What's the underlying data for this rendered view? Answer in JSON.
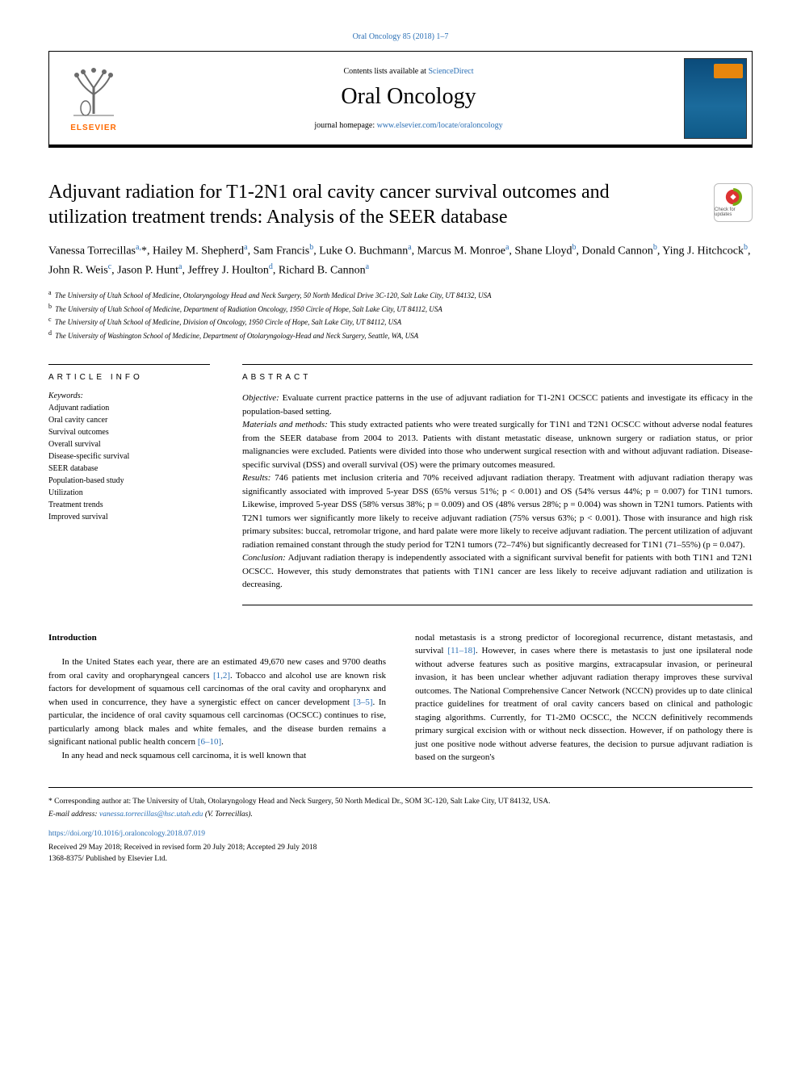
{
  "header": {
    "citation": "Oral Oncology 85 (2018) 1–7",
    "contents_prefix": "Contents lists available at ",
    "contents_link": "ScienceDirect",
    "journal_name": "Oral Oncology",
    "homepage_prefix": "journal homepage: ",
    "homepage_link": "www.elsevier.com/locate/oraloncology",
    "elsevier_label": "ELSEVIER"
  },
  "title": "Adjuvant radiation for T1-2N1 oral cavity cancer survival outcomes and utilization treatment trends: Analysis of the SEER database",
  "check_updates_label": "Check for updates",
  "authors_html": "Vanessa Torrecillas<sup>a,</sup>*, Hailey M. Shepherd<sup>a</sup>, Sam Francis<sup>b</sup>, Luke O. Buchmann<sup>a</sup>, Marcus M. Monroe<sup>a</sup>, Shane Lloyd<sup>b</sup>, Donald Cannon<sup>b</sup>, Ying J. Hitchcock<sup>b</sup>, John R. Weis<sup>c</sup>, Jason P. Hunt<sup>a</sup>, Jeffrey J. Houlton<sup>d</sup>, Richard B. Cannon<sup>a</sup>",
  "affiliations": [
    {
      "sup": "a",
      "text": "The University of Utah School of Medicine, Otolaryngology Head and Neck Surgery, 50 North Medical Drive 3C-120, Salt Lake City, UT 84132, USA"
    },
    {
      "sup": "b",
      "text": "The University of Utah School of Medicine, Department of Radiation Oncology, 1950 Circle of Hope, Salt Lake City, UT 84112, USA"
    },
    {
      "sup": "c",
      "text": "The University of Utah School of Medicine, Division of Oncology, 1950 Circle of Hope, Salt Lake City, UT 84112, USA"
    },
    {
      "sup": "d",
      "text": "The University of Washington School of Medicine, Department of Otolaryngology-Head and Neck Surgery, Seattle, WA, USA"
    }
  ],
  "article_info_heading": "ARTICLE INFO",
  "keywords_label": "Keywords:",
  "keywords": [
    "Adjuvant radiation",
    "Oral cavity cancer",
    "Survival outcomes",
    "Overall survival",
    "Disease-specific survival",
    "SEER database",
    "Population-based study",
    "Utilization",
    "Treatment trends",
    "Improved survival"
  ],
  "abstract_heading": "ABSTRACT",
  "abstract": {
    "objective_label": "Objective:",
    "objective": "Evaluate current practice patterns in the use of adjuvant radiation for T1-2N1 OCSCC patients and investigate its efficacy in the population-based setting.",
    "materials_label": "Materials and methods:",
    "materials": "This study extracted patients who were treated surgically for T1N1 and T2N1 OCSCC without adverse nodal features from the SEER database from 2004 to 2013. Patients with distant metastatic disease, unknown surgery or radiation status, or prior malignancies were excluded. Patients were divided into those who underwent surgical resection with and without adjuvant radiation. Disease-specific survival (DSS) and overall survival (OS) were the primary outcomes measured.",
    "results_label": "Results:",
    "results": "746 patients met inclusion criteria and 70% received adjuvant radiation therapy. Treatment with adjuvant radiation therapy was significantly associated with improved 5-year DSS (65% versus 51%; p < 0.001) and OS (54% versus 44%; p = 0.007) for T1N1 tumors. Likewise, improved 5-year DSS (58% versus 38%; p = 0.009) and OS (48% versus 28%; p = 0.004) was shown in T2N1 tumors. Patients with T2N1 tumors wer significantly more likely to receive adjuvant radiation (75% versus 63%; p < 0.001). Those with insurance and high risk primary subsites: buccal, retromolar trigone, and hard palate were more likely to receive adjuvant radiation. The percent utilization of adjuvant radiation remained constant through the study period for T2N1 tumors (72–74%) but significantly decreased for T1N1 (71–55%) (p = 0.047).",
    "conclusion_label": "Conclusion:",
    "conclusion": "Adjuvant radiation therapy is independently associated with a significant survival benefit for patients with both T1N1 and T2N1 OCSCC. However, this study demonstrates that patients with T1N1 cancer are less likely to receive adjuvant radiation and utilization is decreasing."
  },
  "intro_heading": "Introduction",
  "intro_col1": [
    "In the United States each year, there are an estimated 49,670 new cases and 9700 deaths from oral cavity and oropharyngeal cancers <span class=\"ref\">[1,2]</span>. Tobacco and alcohol use are known risk factors for development of squamous cell carcinomas of the oral cavity and oropharynx and when used in concurrence, they have a synergistic effect on cancer development <span class=\"ref\">[3–5]</span>. In particular, the incidence of oral cavity squamous cell carcinomas (OCSCC) continues to rise, particularly among black males and white females, and the disease burden remains a significant national public health concern <span class=\"ref\">[6–10]</span>.",
    "In any head and neck squamous cell carcinoma, it is well known that"
  ],
  "intro_col2": [
    "nodal metastasis is a strong predictor of locoregional recurrence, distant metastasis, and survival <span class=\"ref\">[11–18]</span>. However, in cases where there is metastasis to just one ipsilateral node without adverse features such as positive margins, extracapsular invasion, or perineural invasion, it has been unclear whether adjuvant radiation therapy improves these survival outcomes. The National Comprehensive Cancer Network (NCCN) provides up to date clinical practice guidelines for treatment of oral cavity cancers based on clinical and pathologic staging algorithms. Currently, for T1-2M0 OCSCC, the NCCN definitively recommends primary surgical excision with or without neck dissection. However, if on pathology there is just one positive node without adverse features, the decision to pursue adjuvant radiation is based on the surgeon's"
  ],
  "footer": {
    "corr_note": "* Corresponding author at: The University of Utah, Otolaryngology Head and Neck Surgery, 50 North Medical Dr., SOM 3C-120, Salt Lake City, UT 84132, USA.",
    "email_label": "E-mail address:",
    "email": "vanessa.torrecillas@hsc.utah.edu",
    "email_author": "(V. Torrecillas).",
    "doi": "https://doi.org/10.1016/j.oraloncology.2018.07.019",
    "received": "Received 29 May 2018; Received in revised form 20 July 2018; Accepted 29 July 2018",
    "issn": "1368-8375/ Published by Elsevier Ltd."
  },
  "colors": {
    "link": "#2a6fb5",
    "elsevier_orange": "#ff6a00",
    "text": "#000000",
    "background": "#ffffff",
    "border": "#000000"
  }
}
